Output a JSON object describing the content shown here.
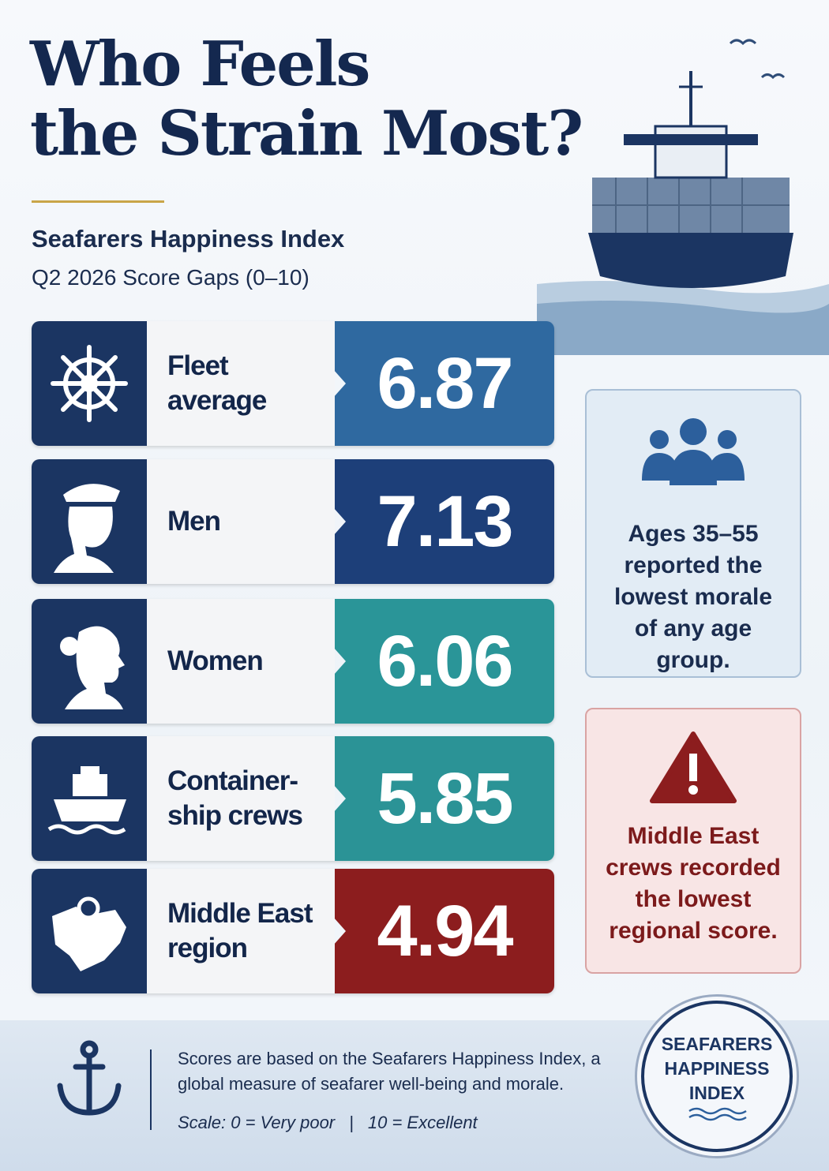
{
  "header": {
    "title_lines": [
      "Who Feels",
      "the Strain Most?"
    ],
    "subtitle": "Seafarers Happiness Index",
    "period": "Q2 2026 Score Gaps (0–10)"
  },
  "rows": [
    {
      "label": "Fleet average",
      "value": 6.87,
      "color": "#2f69a0"
    },
    {
      "label": "Men",
      "value": 7.13,
      "color": "#1d3f79"
    },
    {
      "label": "Women",
      "value": 6.06,
      "color": "#2a9598"
    },
    {
      "label": "Container-ship crews",
      "value": 5.85,
      "color": "#2b9396"
    },
    {
      "label": "Middle East region",
      "value": 4.94,
      "color": "#8c1d1e"
    }
  ],
  "callouts": [
    {
      "text": "Ages 35–55 reported the lowest morale of any age group."
    },
    {
      "text": "Middle East crews recorded the lowest regional score."
    }
  ],
  "footer": {
    "note": "Scores are based on the Seafarers Happiness Index, a global measure of seafarer well-being and morale.",
    "scale_low": "Scale: 0 = Very poor",
    "scale_high": "10 = Excellent"
  },
  "badge": {
    "lines": [
      "SEAFARERS",
      "HAPPINESS",
      "INDEX"
    ]
  }
}
